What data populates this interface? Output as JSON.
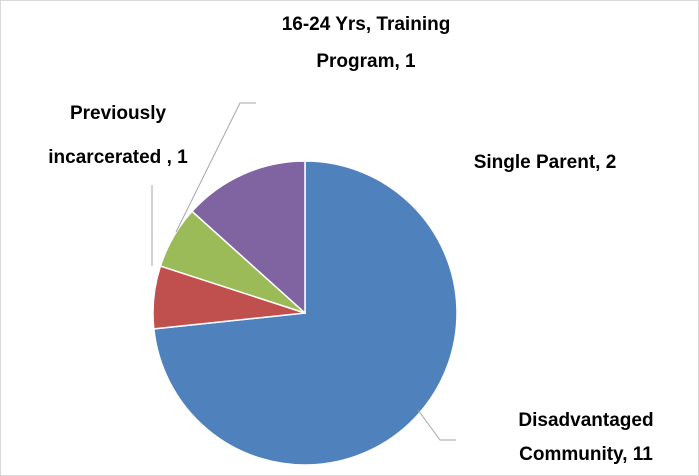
{
  "chart_data": {
    "type": "pie",
    "categories": [
      "Disadvantaged Community",
      "Previously incarcerated ",
      "16-24 Yrs, Training Program",
      "Single Parent"
    ],
    "values": [
      11,
      1,
      1,
      2
    ],
    "colors": [
      "#4f81bd",
      "#c0504d",
      "#9bbb59",
      "#8064a2"
    ],
    "value_labels": [
      [
        "Disadvantaged",
        "Community, 11"
      ],
      [
        "Previously",
        "incarcerated , 1"
      ],
      [
        "16-24 Yrs, Training",
        "Program, 1"
      ],
      [
        "Single Parent, 2"
      ]
    ]
  }
}
